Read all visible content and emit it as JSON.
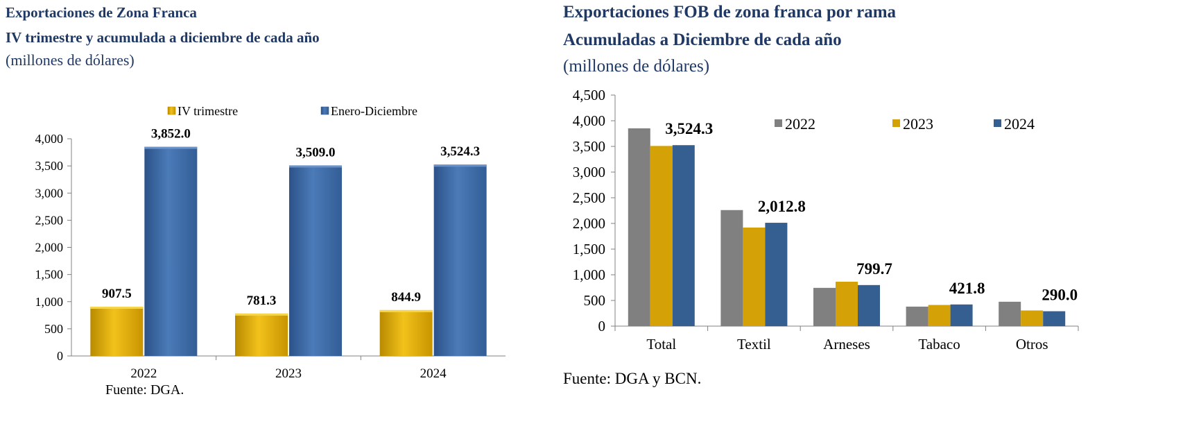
{
  "chart_data": [
    {
      "type": "bar",
      "title": "Exportaciones de Zona Franca",
      "subtitle": "IV trimestre y acumulada a diciembre de cada año",
      "units": "(millones de dólares)",
      "categories": [
        "2022",
        "2023",
        "2024"
      ],
      "series": [
        {
          "name": "IV trimestre",
          "values": [
            907.5,
            781.3,
            844.9
          ],
          "labels": [
            "907.5",
            "781.3",
            "844.9"
          ],
          "color": "#e1ab05"
        },
        {
          "name": "Enero-Diciembre",
          "values": [
            3852.0,
            3509.0,
            3524.3
          ],
          "labels": [
            "3,852.0",
            "3,509.0",
            "3,524.3"
          ],
          "color": "#3e6aa4"
        }
      ],
      "yticks": [
        "0",
        "500",
        "1,000",
        "1,500",
        "2,000",
        "2,500",
        "3,000",
        "3,500",
        "4,000"
      ],
      "ylim": [
        0,
        4000
      ],
      "legend": "top",
      "source": "Fuente: DGA."
    },
    {
      "type": "bar",
      "title": "Exportaciones FOB de zona franca por rama",
      "subtitle": "Acumuladas a Diciembre de cada año",
      "units": "(millones de dólares)",
      "categories": [
        "Total",
        "Textil",
        "Arneses",
        "Tabaco",
        "Otros"
      ],
      "series": [
        {
          "name": "2022",
          "values": [
            3852.0,
            2260,
            745,
            380,
            475
          ],
          "color": "#808080"
        },
        {
          "name": "2023",
          "values": [
            3509.0,
            1920,
            865,
            412,
            305
          ],
          "color": "#d4a106"
        },
        {
          "name": "2024",
          "values": [
            3524.3,
            2012.8,
            799.7,
            421.8,
            290.0
          ],
          "color": "#365f91"
        }
      ],
      "annotations": [
        "3,524.3",
        "2,012.8",
        "799.7",
        "421.8",
        "290.0"
      ],
      "yticks": [
        "0",
        "500",
        "1,000",
        "1,500",
        "2,000",
        "2,500",
        "3,000",
        "3,500",
        "4,000",
        "4,500"
      ],
      "ylim": [
        0,
        4500
      ],
      "legend": "top-right",
      "source": "Fuente: DGA y BCN."
    }
  ]
}
